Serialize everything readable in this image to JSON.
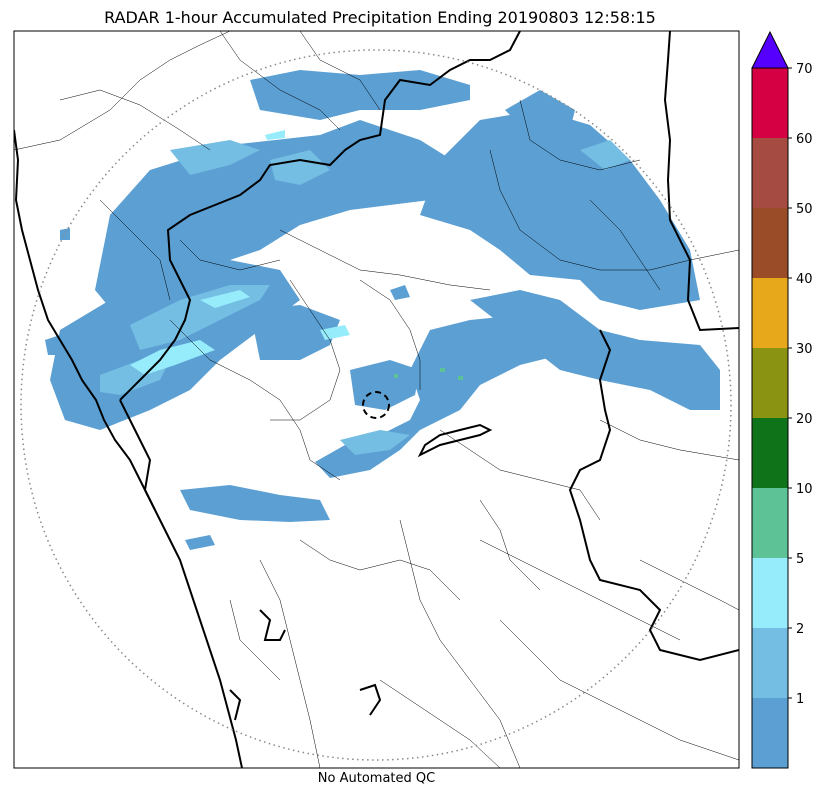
{
  "title": "RADAR 1-hour Accumulated Precipitation Ending 20190803 12:58:15",
  "caption": "No Automated QC",
  "colorbar": {
    "levels": [
      {
        "color": "#5b9fd3",
        "label": ""
      },
      {
        "color": "#74bde3",
        "label": "1"
      },
      {
        "color": "#96ecfb",
        "label": "2"
      },
      {
        "color": "#5ec297",
        "label": "5"
      },
      {
        "color": "#0e7319",
        "label": "10"
      },
      {
        "color": "#8a9412",
        "label": "20"
      },
      {
        "color": "#e8a81c",
        "label": "30"
      },
      {
        "color": "#9a4c28",
        "label": "40"
      },
      {
        "color": "#a64b42",
        "label": "50"
      },
      {
        "color": "#d40043",
        "label": "60"
      }
    ],
    "top_label": "70",
    "extend_color": "#5500ff"
  },
  "colors": {
    "rain_light": "#5b9fd3",
    "rain_medium": "#74bde3",
    "rain_heavy": "#96ecfb",
    "rain_spot": "#5ec297",
    "coastline": "#000000",
    "range_ring": "#888888"
  }
}
